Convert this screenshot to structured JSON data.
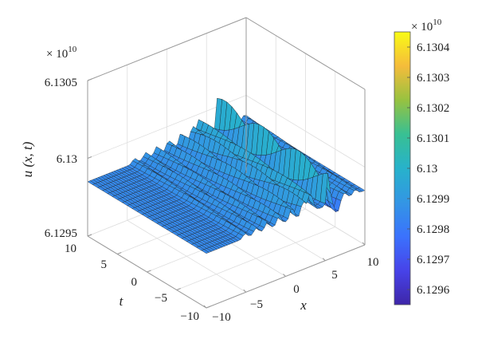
{
  "chart_data": {
    "type": "surface",
    "zlabel": "u (x, t)",
    "xlabel": "x",
    "ylabel": "t",
    "z_multiplier": "× 10",
    "z_multiplier_exp": "10",
    "x_ticks": [
      "−10",
      "−5",
      "0",
      "5",
      "10"
    ],
    "x_tick_values": [
      -10,
      -5,
      0,
      5,
      10
    ],
    "t_ticks": [
      "−10",
      "−5",
      "0",
      "5",
      "10"
    ],
    "t_tick_values": [
      -10,
      -5,
      0,
      5,
      10
    ],
    "z_ticks": [
      "6.1295",
      "6.13",
      "6.1305"
    ],
    "z_tick_values": [
      6.1295,
      6.13,
      6.1305
    ],
    "xlim": [
      -10,
      10
    ],
    "tlim": [
      -10,
      10
    ],
    "zlim": [
      6.1295,
      6.1305
    ],
    "colorbar": {
      "multiplier": "× 10",
      "multiplier_exp": "10",
      "range": [
        6.12955,
        6.13045
      ],
      "ticks": [
        "6.1296",
        "6.1297",
        "6.1298",
        "6.1299",
        "6.13",
        "6.1301",
        "6.1302",
        "6.1303",
        "6.1304"
      ],
      "tick_values": [
        6.1296,
        6.1297,
        6.1298,
        6.1299,
        6.13,
        6.1301,
        6.1302,
        6.1303,
        6.1304
      ],
      "colormap": [
        "#3e26a8",
        "#4743e9",
        "#3b72fd",
        "#3396e4",
        "#27b2cb",
        "#38c093",
        "#97c240",
        "#f5bc3b",
        "#f9fb15"
      ]
    },
    "grid": true
  }
}
